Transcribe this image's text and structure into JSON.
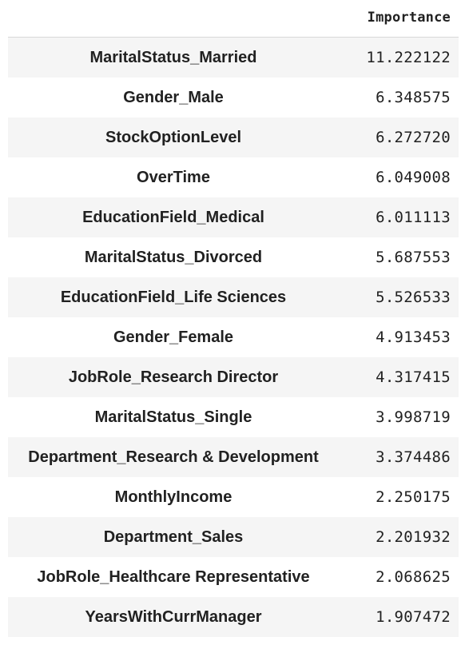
{
  "table": {
    "column_header": "Importance",
    "rows": [
      {
        "label": "MaritalStatus_Married",
        "value": "11.222122"
      },
      {
        "label": "Gender_Male",
        "value": "6.348575"
      },
      {
        "label": "StockOptionLevel",
        "value": "6.272720"
      },
      {
        "label": "OverTime",
        "value": "6.049008"
      },
      {
        "label": "EducationField_Medical",
        "value": "6.011113"
      },
      {
        "label": "MaritalStatus_Divorced",
        "value": "5.687553"
      },
      {
        "label": "EducationField_Life Sciences",
        "value": "5.526533"
      },
      {
        "label": "Gender_Female",
        "value": "4.913453"
      },
      {
        "label": "JobRole_Research Director",
        "value": "4.317415"
      },
      {
        "label": "MaritalStatus_Single",
        "value": "3.998719"
      },
      {
        "label": "Department_Research & Development",
        "value": "3.374486"
      },
      {
        "label": "MonthlyIncome",
        "value": "2.250175"
      },
      {
        "label": "Department_Sales",
        "value": "2.201932"
      },
      {
        "label": "JobRole_Healthcare Representative",
        "value": "2.068625"
      },
      {
        "label": "YearsWithCurrManager",
        "value": "1.907472"
      }
    ]
  }
}
